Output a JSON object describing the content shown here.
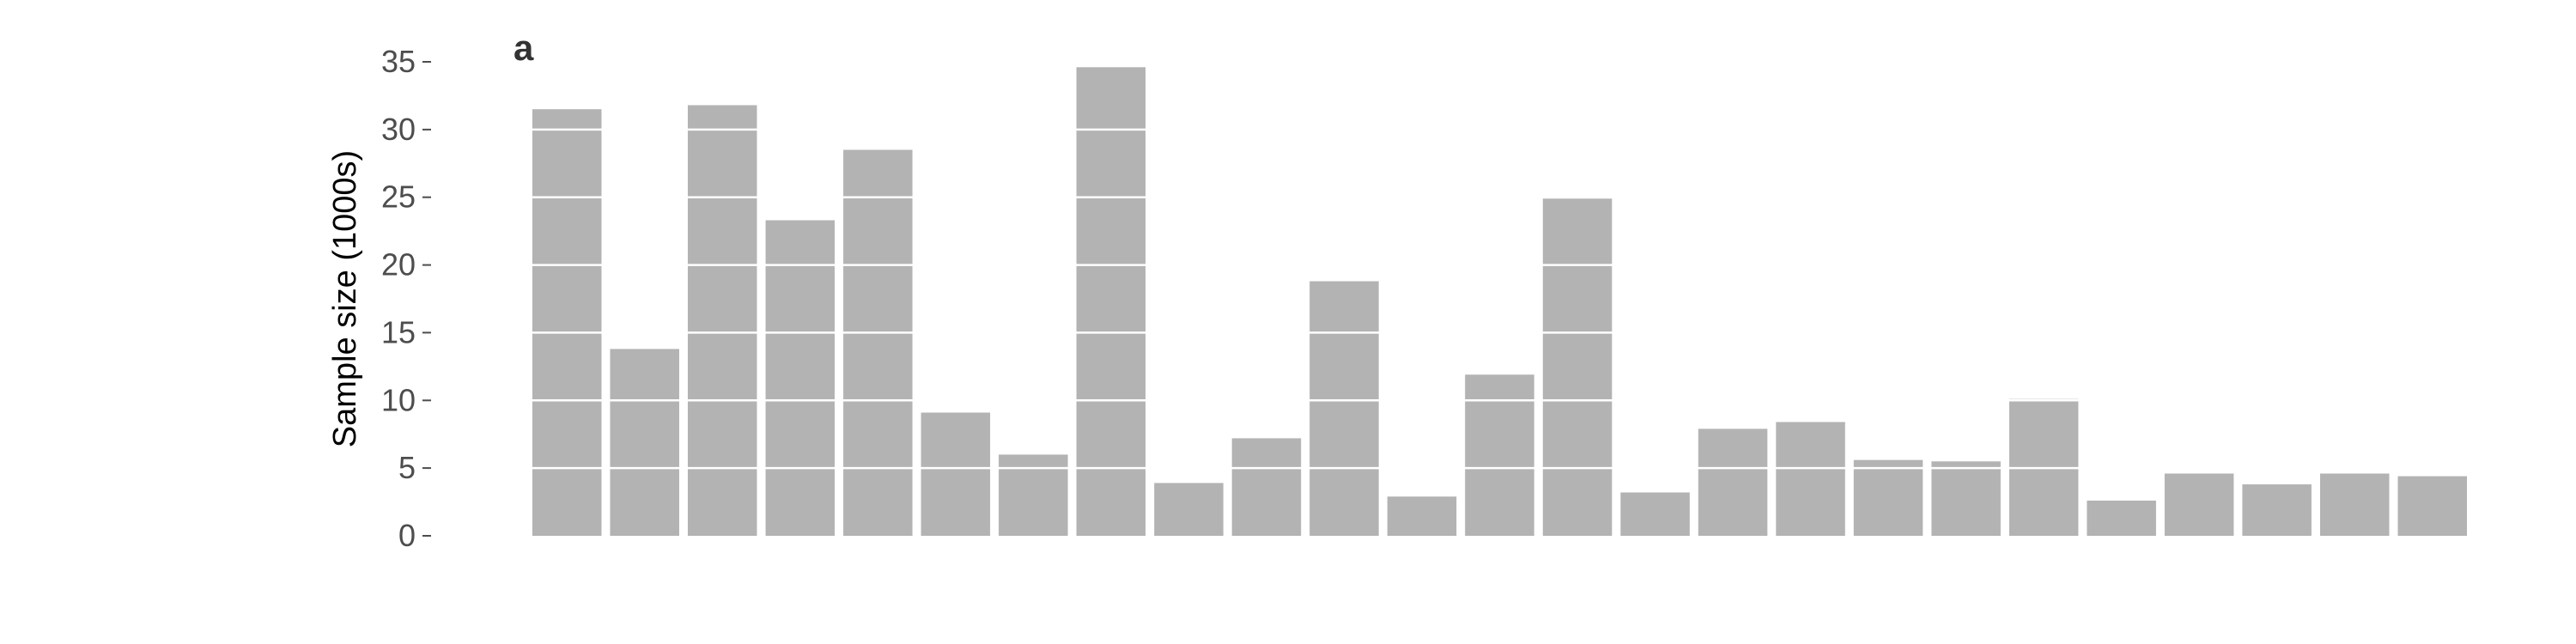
{
  "chart_data": {
    "type": "bar",
    "panel_label": "a",
    "title": "",
    "xlabel": "",
    "ylabel": "Sample size (1000s)",
    "ylim": [
      0,
      35
    ],
    "yticks": [
      0,
      5,
      10,
      15,
      20,
      25,
      30,
      35
    ],
    "grid": "horizontal white lines drawn over bars",
    "values": [
      31.5,
      13.8,
      31.8,
      23.3,
      28.5,
      9.1,
      6.0,
      34.6,
      3.9,
      7.2,
      18.8,
      2.9,
      11.9,
      24.9,
      3.2,
      7.9,
      8.4,
      5.6,
      5.5,
      10.1,
      2.6,
      4.6,
      3.8,
      4.6,
      4.4
    ],
    "bar_color": "#b3b3b3",
    "grid_color": "#ffffff",
    "background": "#ffffff"
  }
}
